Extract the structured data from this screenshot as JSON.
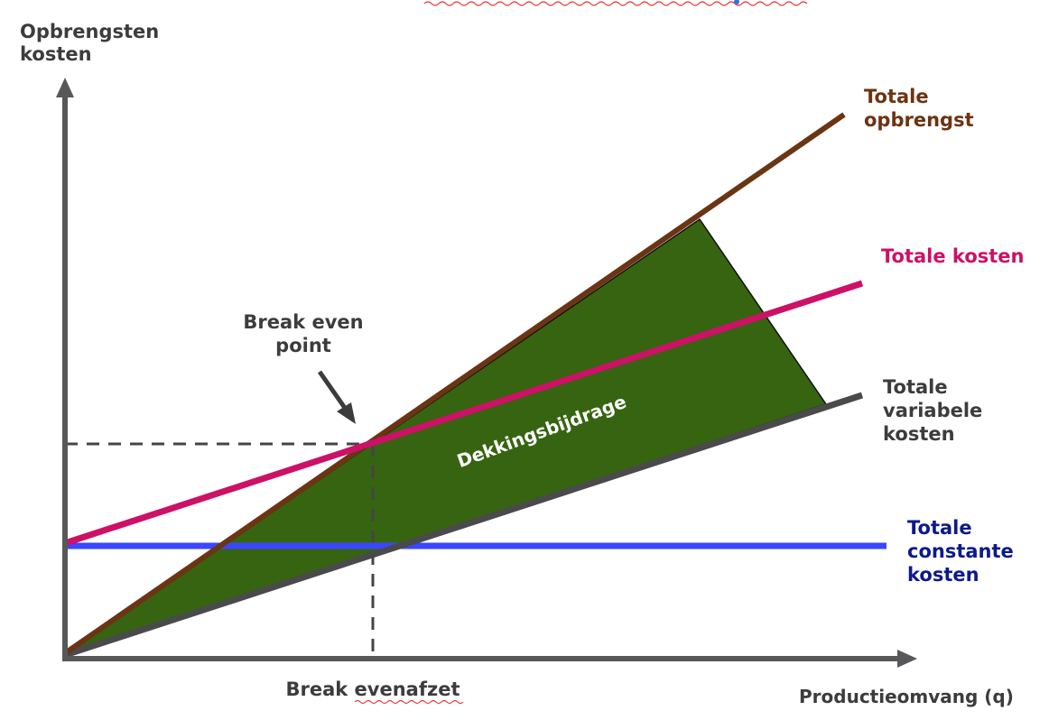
{
  "colors": {
    "axis": "#58585a",
    "revenue": "#6b3413",
    "total_cost": "#cc1166",
    "variable_cost": "#4a4a4c",
    "fixed_cost": "#3a47ff",
    "contribution_fill": "#366410",
    "dashed": "#454545",
    "label_dark": "#3c3c3c",
    "label_revenue": "#6b3413",
    "label_total_cost": "#cc1166",
    "label_fixed": "#0c1a8c",
    "annotation_text": "#ffffff"
  },
  "labels": {
    "y_axis_line1": "Opbrengsten",
    "y_axis_line2": "kosten",
    "x_axis": "Productieomvang (q)",
    "revenue_line1": "Totale",
    "revenue_line2": "opbrengst",
    "total_cost": "Totale kosten",
    "variable_line1": "Totale",
    "variable_line2": "variabele",
    "variable_line3": "kosten",
    "fixed_line1": "Totale",
    "fixed_line2": "constante",
    "fixed_line3": "kosten",
    "bep_line1": "Break even",
    "bep_line2": "point",
    "break_even_volume": "Break evenafzet",
    "contribution": "Dekkingsbijdrage"
  },
  "icons": {
    "pointer": "arrow-pointer-icon",
    "y_arrow": "arrow-up-icon",
    "x_arrow": "arrow-right-icon"
  }
}
